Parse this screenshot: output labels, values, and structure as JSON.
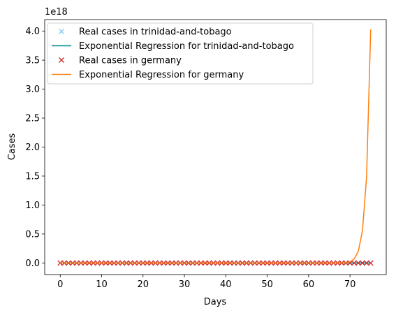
{
  "chart_data": {
    "type": "line",
    "xlabel": "Days",
    "ylabel": "Cases",
    "y_offset_label": "1e18",
    "xlim": [
      -3.75,
      78.75
    ],
    "ylim": [
      -0.2,
      4.2
    ],
    "y_scale_factor": 1e+18,
    "x_ticks": [
      0,
      10,
      20,
      30,
      40,
      50,
      60,
      70
    ],
    "x_tick_labels": [
      "0",
      "10",
      "20",
      "30",
      "40",
      "50",
      "60",
      "70"
    ],
    "y_ticks": [
      0.0,
      0.5,
      1.0,
      1.5,
      2.0,
      2.5,
      3.0,
      3.5,
      4.0
    ],
    "y_tick_labels": [
      "0.0",
      "0.5",
      "1.0",
      "1.5",
      "2.0",
      "2.5",
      "3.0",
      "3.5",
      "4.0"
    ],
    "grid": false,
    "legend_position": "top-left",
    "series": [
      {
        "name": "Real cases in trinidad-and-tobago",
        "kind": "marker",
        "marker": "x",
        "color": "#87ceeb",
        "x_range": [
          0,
          75
        ],
        "y_constant": 0
      },
      {
        "name": "Exponential Regression for trinidad-and-tobago",
        "kind": "line",
        "color": "#008b8b",
        "x_range": [
          0,
          75
        ],
        "y_constant": 0
      },
      {
        "name": "Real cases in germany",
        "kind": "marker",
        "marker": "x",
        "color": "#d62728",
        "x_range": [
          0,
          75
        ],
        "y_constant": 0
      },
      {
        "name": "Exponential Regression for germany",
        "kind": "line",
        "color": "#ff7f0e",
        "x": [
          0,
          68,
          69,
          70,
          71,
          72,
          73,
          74,
          75
        ],
        "y": [
          0,
          0,
          0.005,
          0.02,
          0.07,
          0.2,
          0.55,
          1.48,
          4.03
        ]
      }
    ]
  }
}
